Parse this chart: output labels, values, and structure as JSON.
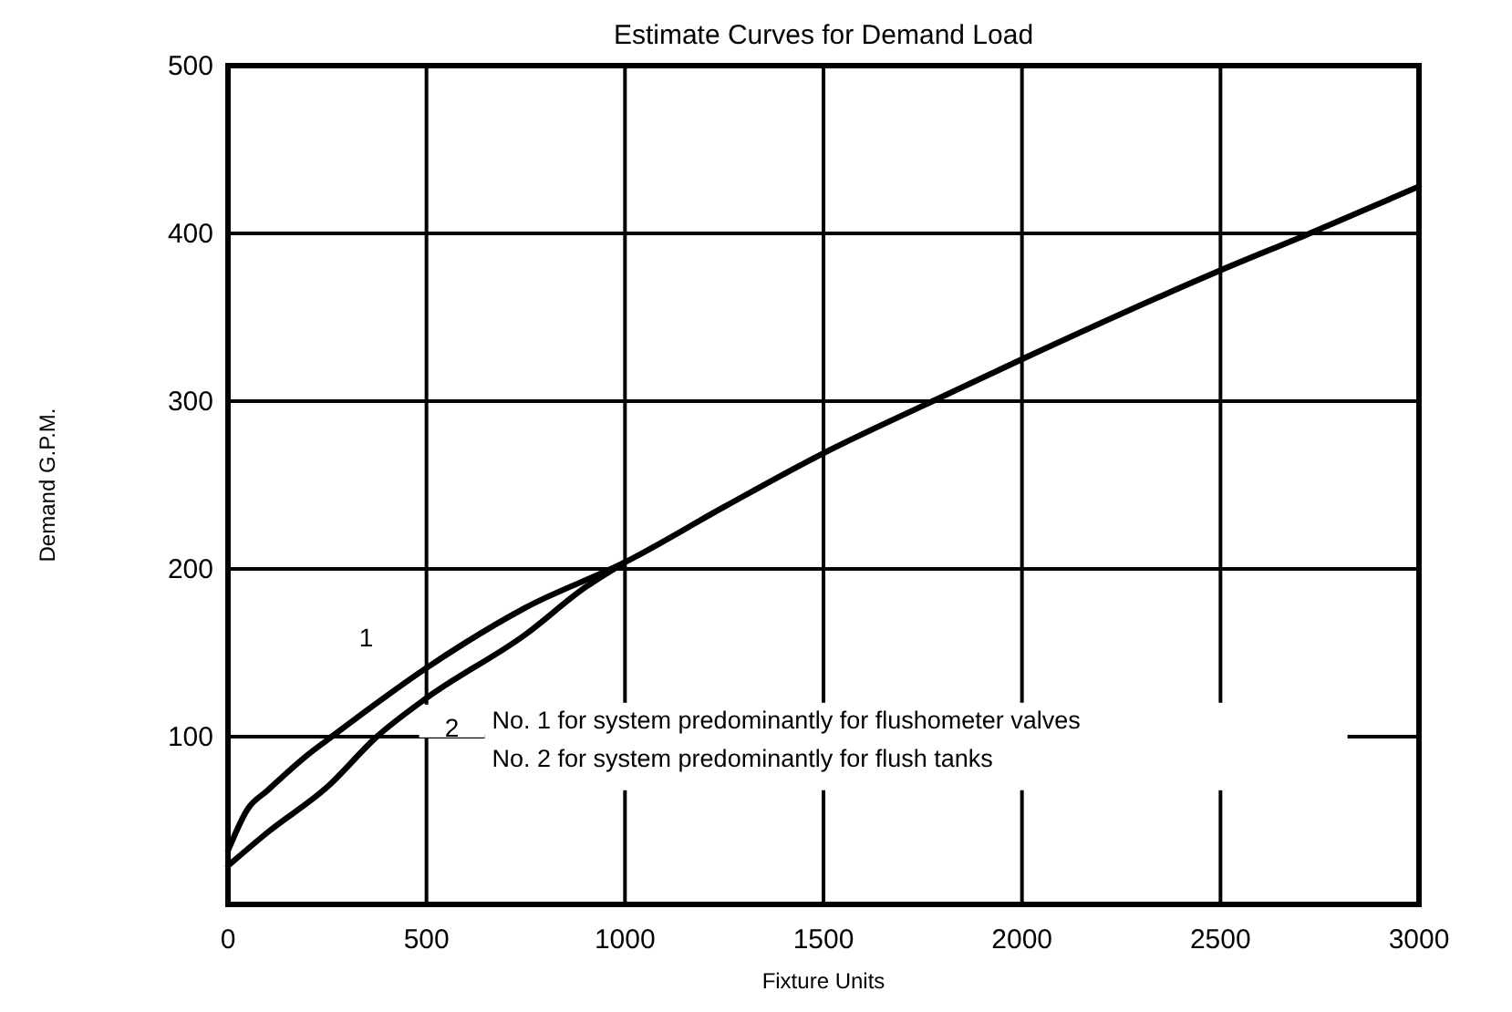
{
  "chart_data": {
    "type": "line",
    "title": "Estimate Curves for Demand Load",
    "xlabel": "Fixture Units",
    "ylabel": "Demand  G.P.M.",
    "xlim": [
      0,
      3000
    ],
    "xticks": [
      0,
      500,
      1000,
      1500,
      2000,
      2500,
      3000
    ],
    "ylim": [
      0,
      500
    ],
    "yticks": [
      100,
      200,
      300,
      400,
      500
    ],
    "grid": true,
    "series": [
      {
        "name": "1",
        "color": "#000000",
        "x": [
          0,
          50,
          100,
          200,
          250,
          500,
          750,
          1000,
          1250,
          1500,
          1775,
          2000,
          2500,
          2725,
          3000
        ],
        "values": [
          32,
          57,
          68,
          89,
          98,
          141,
          177,
          204,
          237,
          269,
          300,
          325,
          378,
          400,
          428
        ]
      },
      {
        "name": "2",
        "color": "#000000",
        "x": [
          0,
          100,
          250,
          375,
          500,
          750,
          900,
          1000
        ],
        "values": [
          23,
          43,
          70,
          100,
          123,
          161,
          189,
          204
        ]
      }
    ],
    "annotations": [
      "No. 1 for system predominantly for flushometer valves",
      "No. 2 for system predominantly for flush tanks"
    ]
  }
}
